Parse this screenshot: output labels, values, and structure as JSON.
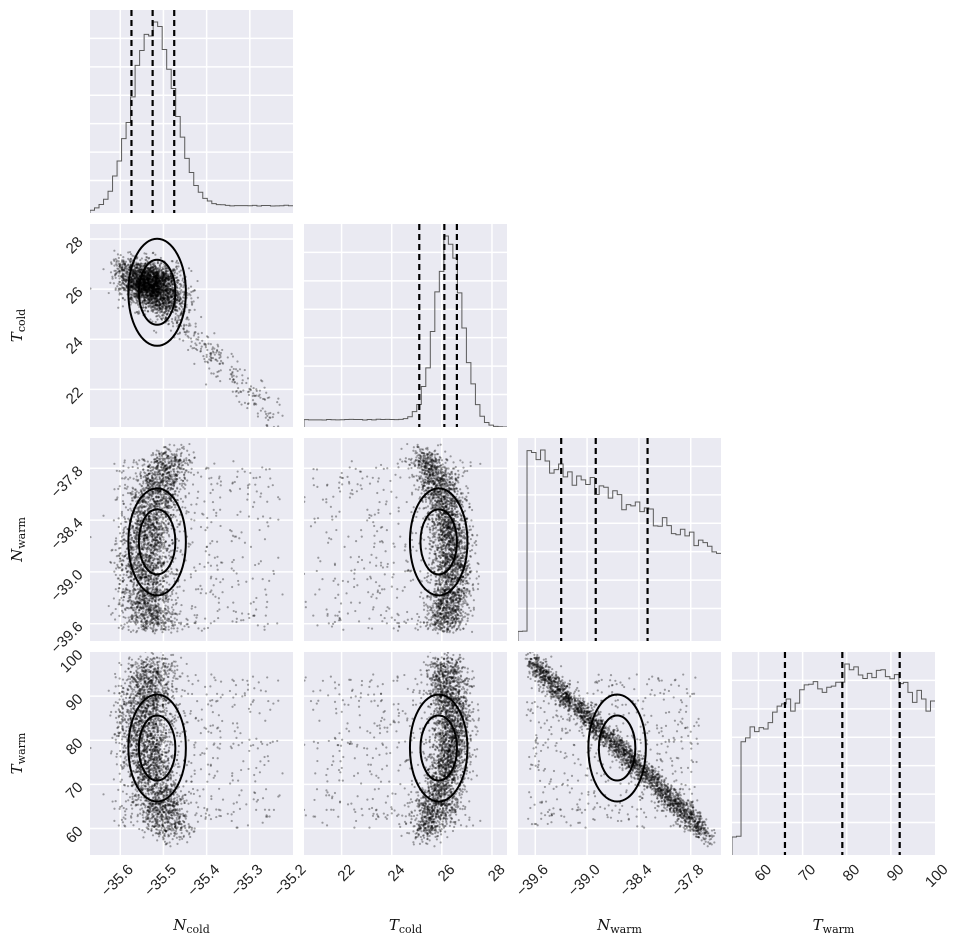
{
  "chart_data": {
    "type": "corner",
    "parameters": [
      {
        "symbol": "N",
        "subscript": "cold",
        "range": [
          -35.67,
          -35.2
        ],
        "ticks": [
          -35.6,
          -35.5,
          -35.4,
          -35.3,
          -35.2
        ],
        "tick_labels": [
          "−35.6",
          "−35.5",
          "−35.4",
          "−35.3",
          "−35.2"
        ],
        "quantiles": [
          -35.574,
          -35.525,
          -35.475
        ],
        "peak": -35.525,
        "spread": 0.048
      },
      {
        "symbol": "T",
        "subscript": "cold",
        "range": [
          20.5,
          28.6
        ],
        "ticks": [
          22,
          24,
          26,
          28
        ],
        "tick_labels": [
          "22",
          "24",
          "26",
          "28"
        ],
        "quantiles": [
          25.1,
          26.1,
          26.6
        ],
        "peak": 26.3,
        "spread": 0.55
      },
      {
        "symbol": "N",
        "subscript": "warm",
        "range": [
          -39.8,
          -37.45
        ],
        "ticks": [
          -39.6,
          -39.0,
          -38.4,
          -37.8
        ],
        "tick_labels": [
          "−39.6",
          "−39.0",
          "−38.4",
          "−37.8"
        ],
        "quantiles": [
          -39.3,
          -38.9,
          -38.3
        ],
        "peak": -39.1,
        "spread": 0.45
      },
      {
        "symbol": "T",
        "subscript": "warm",
        "range": [
          54,
          100
        ],
        "ticks": [
          60,
          70,
          80,
          90,
          100
        ],
        "tick_labels": [
          "60",
          "70",
          "80",
          "90",
          "100"
        ],
        "quantiles": [
          66,
          79,
          92
        ],
        "peak": 83,
        "spread": 12
      }
    ],
    "grid": true,
    "legend": "none"
  },
  "colors": {
    "panel_bg": "#eaeaf2",
    "grid": "#ffffff",
    "hist": "#5a5a5a",
    "quantile_line": "#000000",
    "points": "#000000"
  }
}
